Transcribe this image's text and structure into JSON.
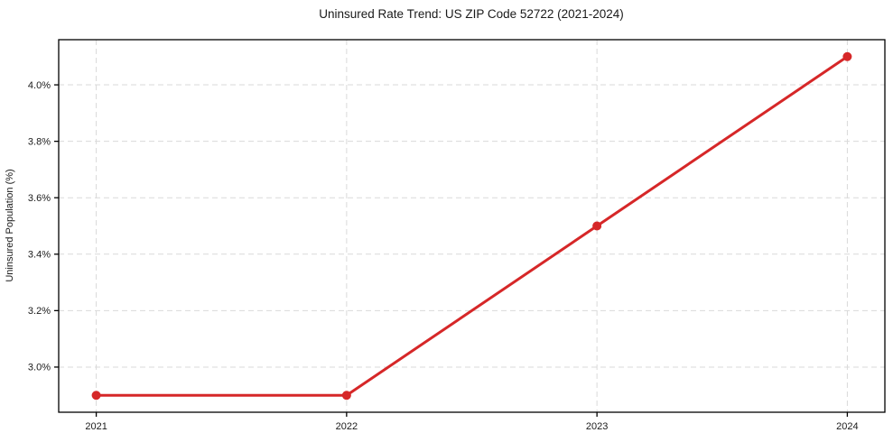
{
  "chart_data": {
    "type": "line",
    "title": "Uninsured Rate Trend: US ZIP Code 52722 (2021-2024)",
    "xlabel": "",
    "ylabel": "Uninsured Population (%)",
    "x": [
      2021,
      2022,
      2023,
      2024
    ],
    "x_tick_labels": [
      "2021",
      "2022",
      "2023",
      "2024"
    ],
    "y_ticks": [
      3.0,
      3.2,
      3.4,
      3.6,
      3.8,
      4.0
    ],
    "y_tick_labels": [
      "3.0%",
      "3.2%",
      "3.4%",
      "3.6%",
      "3.8%",
      "4.0%"
    ],
    "series": [
      {
        "name": "Uninsured Rate",
        "values": [
          2.9,
          2.9,
          3.5,
          4.1
        ],
        "color": "#d62728",
        "marker": "circle"
      }
    ],
    "xlim": [
      2020.85,
      2024.15
    ],
    "ylim": [
      2.84,
      4.16
    ],
    "grid": true,
    "grid_style": "dashed",
    "grid_color": "#d9d9d9",
    "frame_color": "#000000",
    "background_color": "#ffffff",
    "legend": "none"
  }
}
